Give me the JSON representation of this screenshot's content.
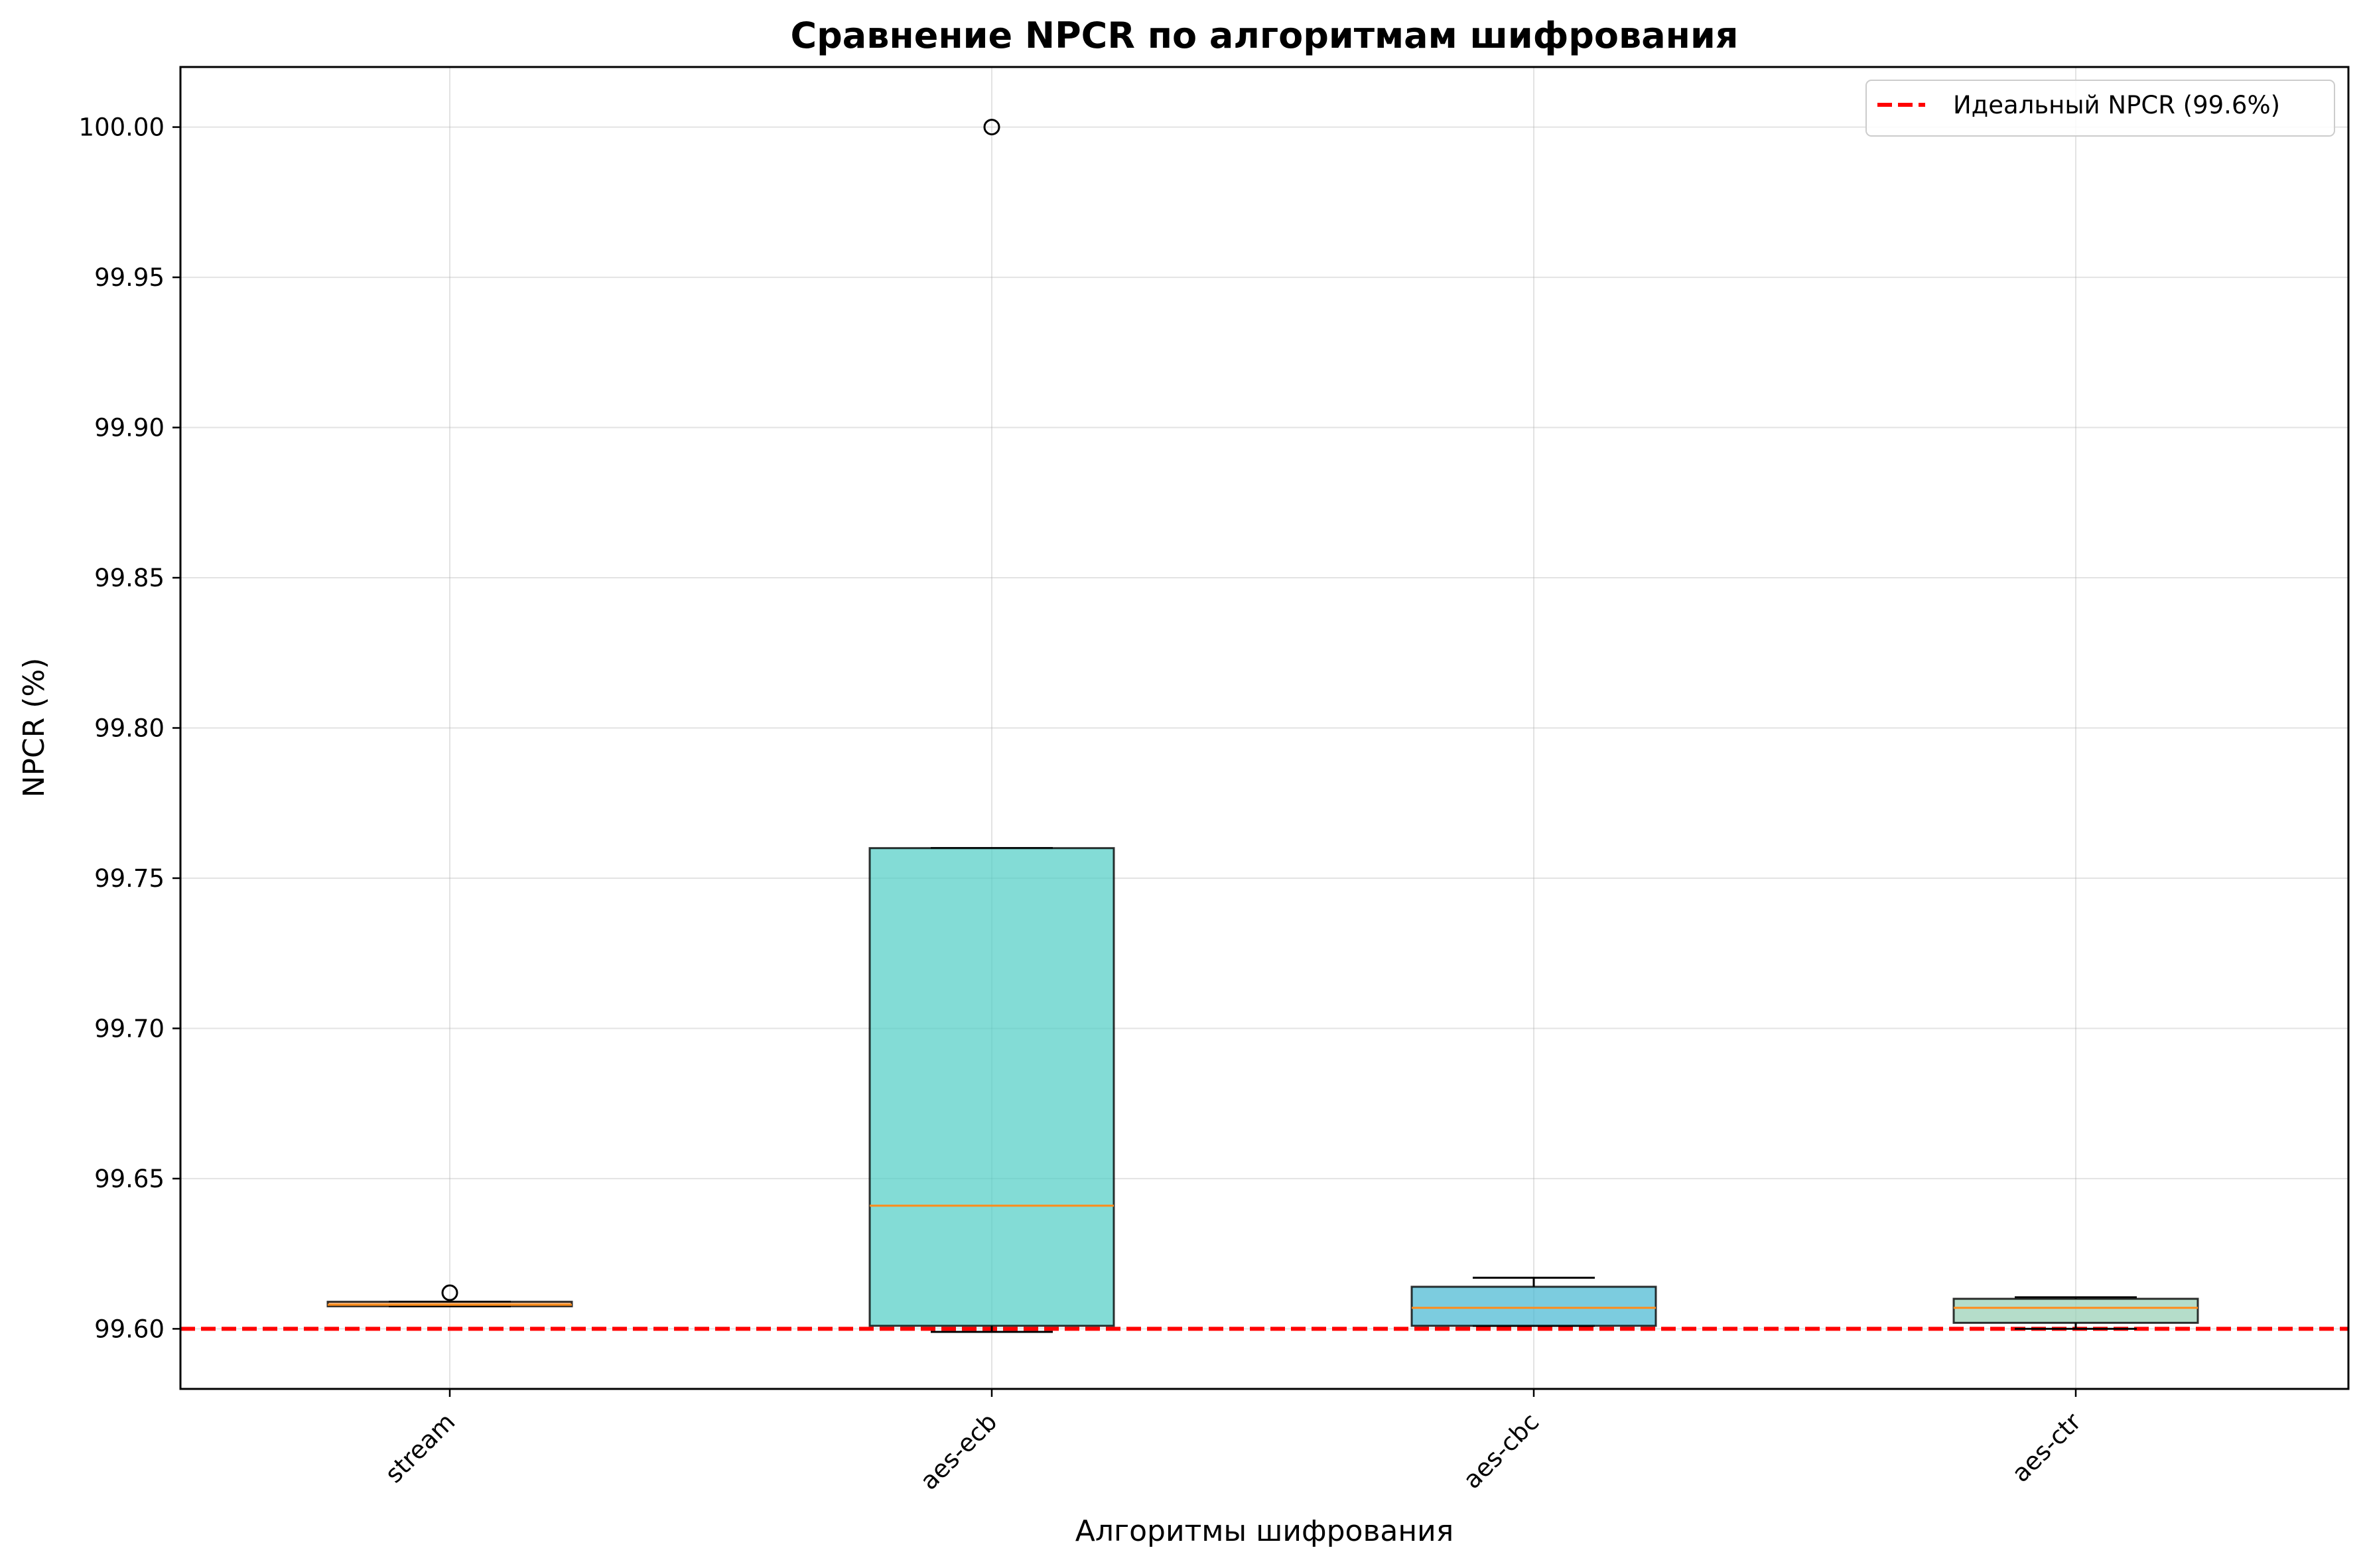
{
  "chart_data": {
    "type": "box",
    "title": "Сравнение NPCR по алгоритмам шифрования",
    "xlabel": "Алгоритмы шифрования",
    "ylabel": "NPCR (%)",
    "ylim": [
      99.58,
      100.02
    ],
    "yticks": [
      "99.60",
      "99.65",
      "99.70",
      "99.75",
      "99.80",
      "99.85",
      "99.90",
      "99.95",
      "100.00"
    ],
    "grid": true,
    "legend_position": "top-right",
    "categories": [
      "stream",
      "aes-ecb",
      "aes-cbc",
      "aes-ctr"
    ],
    "boxes": [
      {
        "name": "stream",
        "color": "#f4a460",
        "whisker_low": 99.6075,
        "q1": 99.6075,
        "median": 99.608,
        "q3": 99.609,
        "whisker_high": 99.609,
        "outliers": [
          99.612
        ]
      },
      {
        "name": "aes-ecb",
        "color": "#4ecdc4",
        "whisker_low": 99.599,
        "q1": 99.601,
        "median": 99.641,
        "q3": 99.76,
        "whisker_high": 99.76,
        "outliers": [
          100.0
        ]
      },
      {
        "name": "aes-cbc",
        "color": "#45b7d1",
        "whisker_low": 99.601,
        "q1": 99.601,
        "median": 99.607,
        "q3": 99.614,
        "whisker_high": 99.617,
        "outliers": []
      },
      {
        "name": "aes-ctr",
        "color": "#96ceb4",
        "whisker_low": 99.6,
        "q1": 99.602,
        "median": 99.607,
        "q3": 99.61,
        "whisker_high": 99.6105,
        "outliers": []
      }
    ],
    "reference_line": {
      "value": 99.6,
      "label": "Идеальный NPCR (99.6%)",
      "color": "#ff0000",
      "style": "dashed"
    },
    "median_color": "#ff8c1a"
  }
}
